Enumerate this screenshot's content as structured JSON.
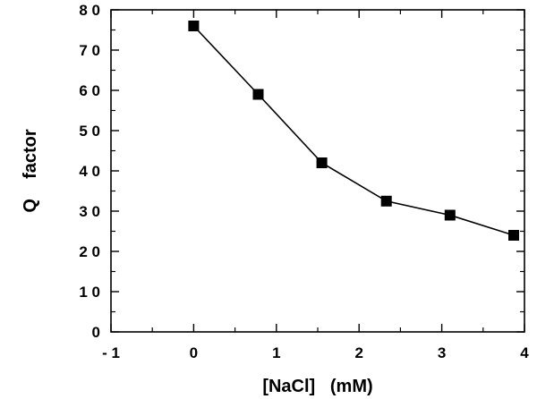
{
  "chart_data": {
    "type": "line",
    "title": "",
    "xlabel": "[NaCl]   (mM)",
    "ylabel": "Q    factor",
    "xlim": [
      -1,
      4
    ],
    "ylim": [
      0,
      80
    ],
    "x_ticks": [
      -1,
      0,
      1,
      2,
      3,
      4
    ],
    "x_tick_labels": [
      "- 1",
      "0",
      "1",
      "2",
      "3",
      "4"
    ],
    "y_ticks": [
      0,
      10,
      20,
      30,
      40,
      50,
      60,
      70,
      80
    ],
    "y_tick_labels": [
      "0",
      "1 0",
      "2 0",
      "3 0",
      "4 0",
      "5 0",
      "6 0",
      "7 0",
      "8 0"
    ],
    "grid": false,
    "legend": "none",
    "marker": "square",
    "series": [
      {
        "x": [
          0.0,
          0.78,
          1.55,
          2.33,
          3.1,
          3.87
        ],
        "y": [
          76,
          59,
          42,
          32.5,
          29,
          24
        ]
      }
    ]
  }
}
